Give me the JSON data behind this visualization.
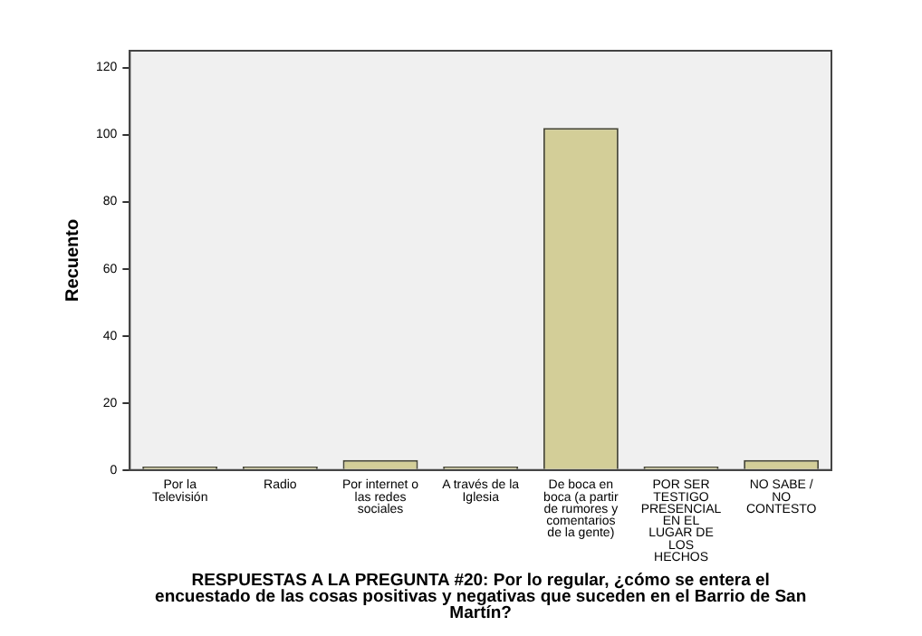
{
  "chart_data": {
    "type": "bar",
    "categories": [
      "Por la Televisión",
      "Radio",
      "Por internet o las redes sociales",
      "A través de la Iglesia",
      "De boca en boca (a partir de rumores y comentarios de la gente)",
      "POR SER TESTIGO PRESENCIAL EN EL LUGAR DE LOS HECHOS",
      "NO SABE / NO CONTESTO"
    ],
    "values": [
      1,
      1,
      3,
      1,
      102,
      1,
      3
    ],
    "color": "#d3ce98",
    "xlabel": "RESPUESTAS A LA PREGUNTA #20: Por lo regular, ¿cómo se entera el encuestado de las cosas positivas y negativas que suceden en el Barrio de San Martín?",
    "ylabel": "Recuento",
    "ylim": [
      0,
      125
    ],
    "yticks": [
      0,
      20,
      40,
      60,
      80,
      100,
      120
    ],
    "grid": false,
    "legend": false
  }
}
